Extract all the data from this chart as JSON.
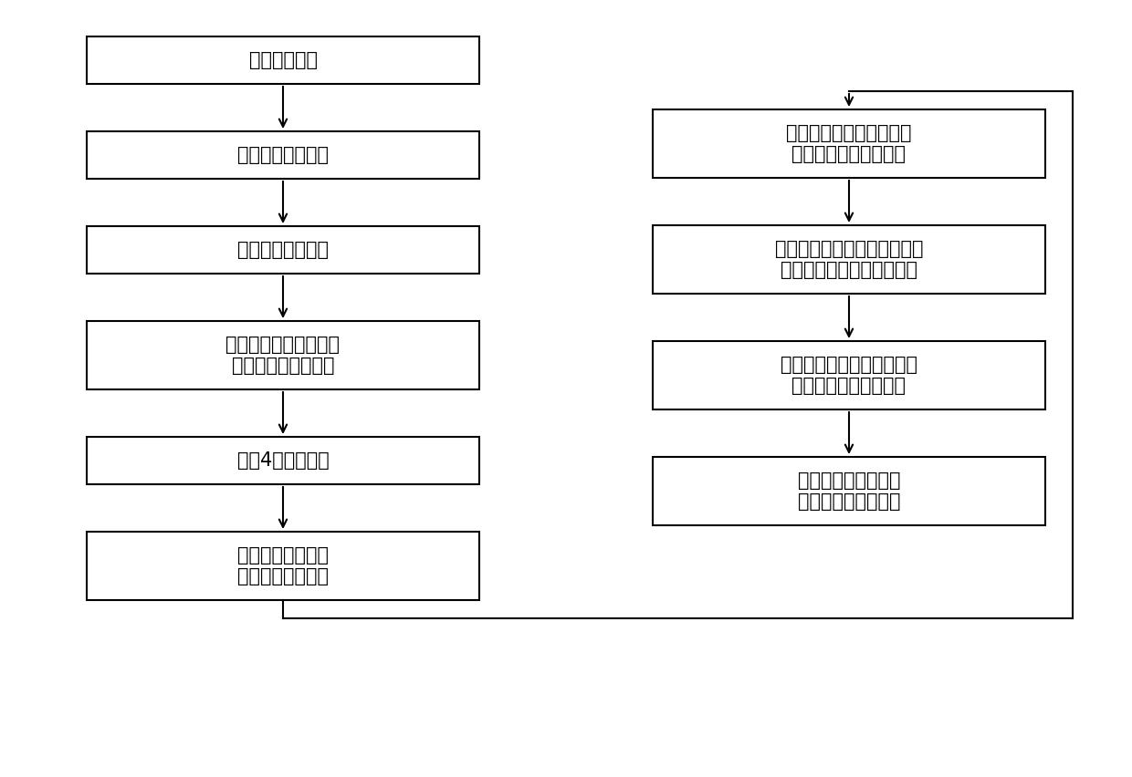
{
  "left_boxes": [
    {
      "text": "设置天线阵列",
      "lines": 1
    },
    {
      "text": "建立参数估计模型",
      "lines": 1
    },
    {
      "text": "计算阵列输出矩阵",
      "lines": 1
    },
    {
      "text": "利用信源的非圆特性，\n构造扩展的输出矩阵",
      "lines": 2
    },
    {
      "text": "设置4个选择矩阵",
      "lines": 1
    },
    {
      "text": "计算扩展阵列输出\n矩阵的协方差矩阵",
      "lines": 2
    }
  ],
  "right_boxes": [
    {
      "text": "对协方差矩阵进行特征值\n分解，得到信号子空间",
      "lines": 2
    },
    {
      "text": "利用扩展后的广义导向矢量阵\n的选择不变性，计算等价阵",
      "lines": 2
    },
    {
      "text": "对等价阵进行特征值分解，\n得到特征值和特征矢量",
      "lines": 2
    },
    {
      "text": "对特征值进行配对，\n计算方位角和俯仰角",
      "lines": 2
    }
  ],
  "bg_color": "#ffffff",
  "box_color": "#ffffff",
  "box_edge_color": "#000000",
  "arrow_color": "#000000",
  "text_color": "#000000",
  "font_size": 15
}
